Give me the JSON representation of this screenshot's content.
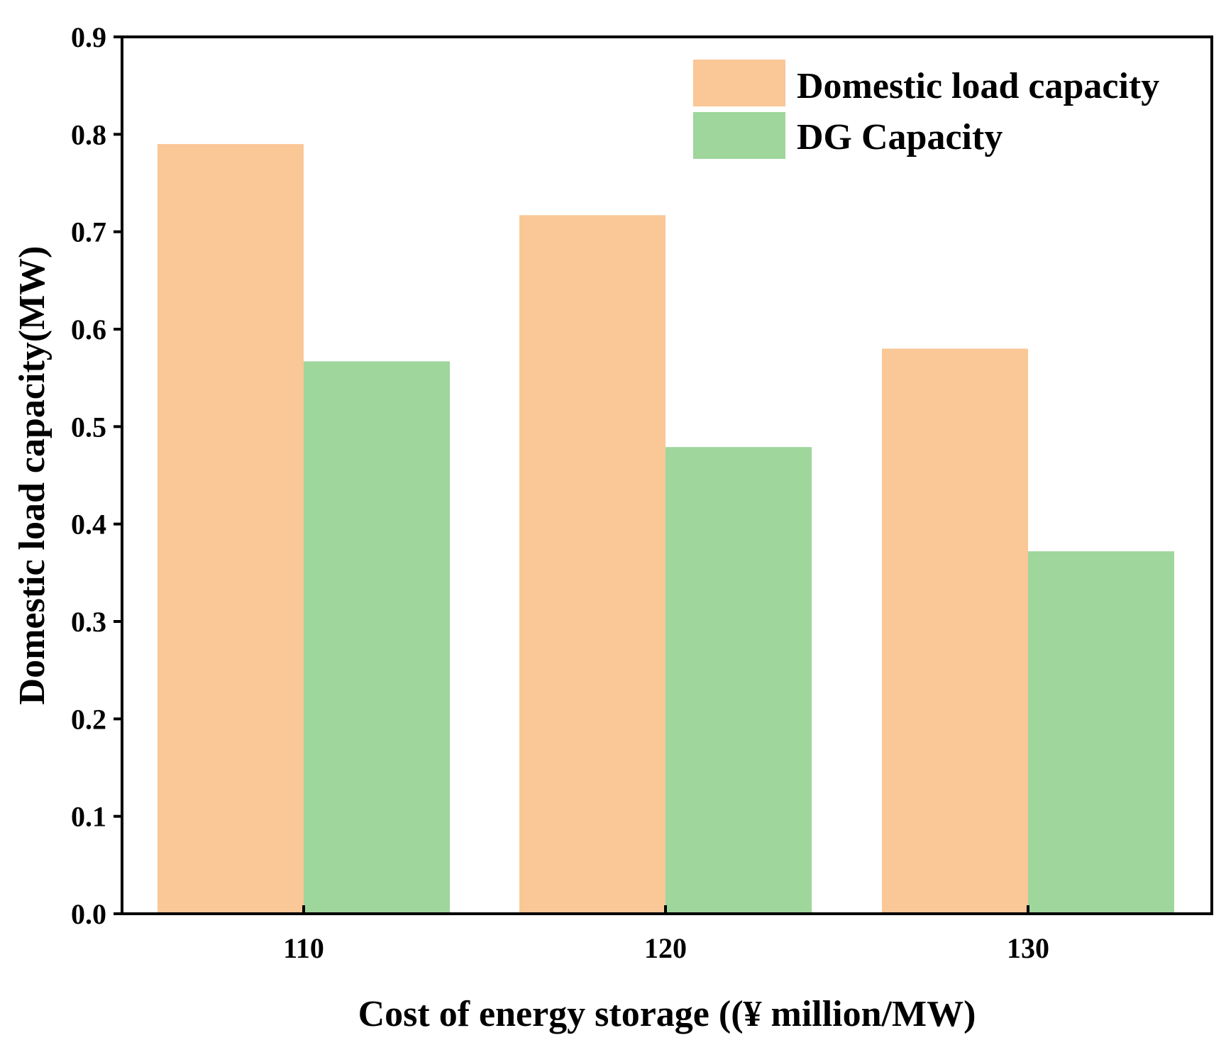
{
  "chart_data": {
    "type": "bar",
    "title": "",
    "xlabel": "Cost of energy storage ((¥  million/MW)",
    "ylabel": "Domestic load capacity(MW)",
    "categories": [
      "110",
      "120",
      "130"
    ],
    "series": [
      {
        "name": "Domestic load capacity",
        "color": "#FAC796",
        "values": [
          0.79,
          0.717,
          0.58
        ]
      },
      {
        "name": "DG Capacity",
        "color": "#9ED69C",
        "values": [
          0.567,
          0.479,
          0.372
        ]
      }
    ],
    "ylim": [
      0,
      0.9
    ],
    "yticks": [
      "0.0",
      "0.1",
      "0.2",
      "0.3",
      "0.4",
      "0.5",
      "0.6",
      "0.7",
      "0.8",
      "0.9"
    ],
    "legend_position": "top-right",
    "grid": false
  }
}
